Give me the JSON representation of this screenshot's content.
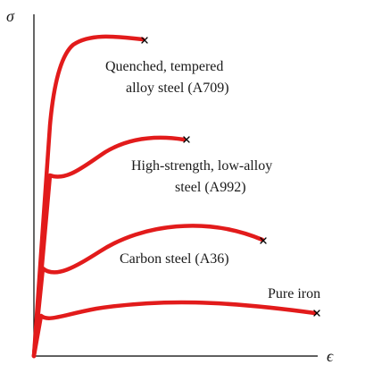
{
  "axes": {
    "y_symbol": "σ",
    "x_symbol": "ϵ"
  },
  "curves": [
    {
      "id": "a709",
      "label_lines": [
        "Quenched, tempered",
        "alloy steel (A709)"
      ],
      "color": "#e21b1b"
    },
    {
      "id": "a992",
      "label_lines": [
        "High-strength, low-alloy",
        "steel (A992)"
      ],
      "color": "#e21b1b"
    },
    {
      "id": "a36",
      "label_lines": [
        "Carbon steel (A36)"
      ],
      "color": "#e21b1b"
    },
    {
      "id": "iron",
      "label_lines": [
        "Pure iron"
      ],
      "color": "#e21b1b"
    }
  ],
  "fracture_marker": "×"
}
